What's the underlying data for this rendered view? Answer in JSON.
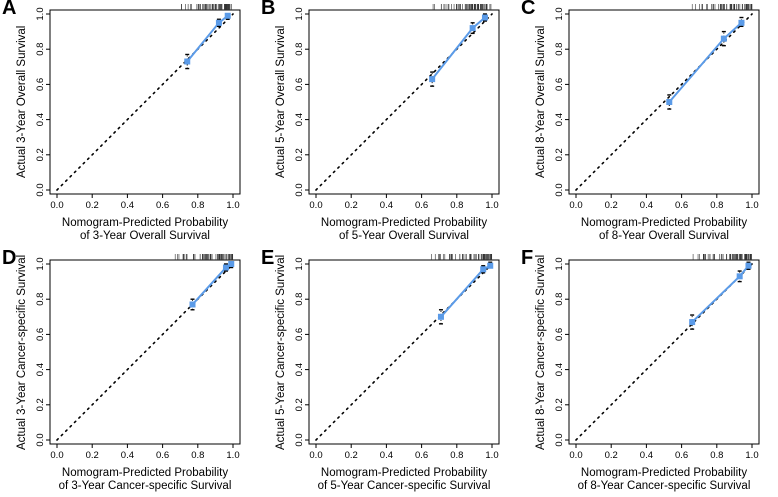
{
  "colors": {
    "calibration_line": "#5b9be8",
    "points": "#000000",
    "ideal_line": "#000000"
  },
  "chart_data": [
    {
      "label": "A",
      "type": "scatter",
      "xlabel": [
        "Nomogram-Predicted Probability",
        "of 3-Year Overall Survival"
      ],
      "ylabel": "Actual 3-Year Overall Survival",
      "xlim": [
        0,
        1
      ],
      "ylim": [
        0,
        1
      ],
      "xticks": [
        "0.0",
        "0.2",
        "0.4",
        "0.6",
        "0.8",
        "1.0"
      ],
      "yticks": [
        "0.0",
        "0.2",
        "0.4",
        "0.6",
        "0.8",
        "1.0"
      ],
      "ideal_line": [
        [
          0,
          0
        ],
        [
          1,
          1
        ]
      ],
      "points": [
        {
          "x": 0.74,
          "y": 0.73,
          "lo": 0.69,
          "hi": 0.77
        },
        {
          "x": 0.92,
          "y": 0.95,
          "lo": 0.93,
          "hi": 0.97
        },
        {
          "x": 0.97,
          "y": 0.99,
          "lo": 0.97,
          "hi": 1.0
        }
      ]
    },
    {
      "label": "B",
      "type": "scatter",
      "xlabel": [
        "Nomogram-Predicted Probability",
        "of 5-Year Overall Survival"
      ],
      "ylabel": "Actual 5-Year Overall Survival",
      "xlim": [
        0,
        1
      ],
      "ylim": [
        0,
        1
      ],
      "xticks": [
        "0.0",
        "0.2",
        "0.4",
        "0.6",
        "0.8",
        "1.0"
      ],
      "yticks": [
        "0.0",
        "0.2",
        "0.4",
        "0.6",
        "0.8",
        "1.0"
      ],
      "ideal_line": [
        [
          0,
          0
        ],
        [
          1,
          1
        ]
      ],
      "points": [
        {
          "x": 0.66,
          "y": 0.63,
          "lo": 0.59,
          "hi": 0.67
        },
        {
          "x": 0.89,
          "y": 0.92,
          "lo": 0.89,
          "hi": 0.95
        },
        {
          "x": 0.96,
          "y": 0.98,
          "lo": 0.96,
          "hi": 1.0
        }
      ]
    },
    {
      "label": "C",
      "type": "scatter",
      "xlabel": [
        "Nomogram-Predicted Probability",
        "of 8-Year Overall Survival"
      ],
      "ylabel": "Actual 8-Year Overall Survival",
      "xlim": [
        0,
        1
      ],
      "ylim": [
        0,
        1
      ],
      "xticks": [
        "0.0",
        "0.2",
        "0.4",
        "0.6",
        "0.8",
        "1.0"
      ],
      "yticks": [
        "0.0",
        "0.2",
        "0.4",
        "0.6",
        "0.8",
        "1.0"
      ],
      "ideal_line": [
        [
          0,
          0
        ],
        [
          1,
          1
        ]
      ],
      "points": [
        {
          "x": 0.53,
          "y": 0.5,
          "lo": 0.46,
          "hi": 0.54
        },
        {
          "x": 0.84,
          "y": 0.86,
          "lo": 0.82,
          "hi": 0.9
        },
        {
          "x": 0.94,
          "y": 0.95,
          "lo": 0.93,
          "hi": 0.98
        }
      ]
    },
    {
      "label": "D",
      "type": "scatter",
      "xlabel": [
        "Nomogram-Predicted Probability",
        "of 3-Year Cancer-specific Survival"
      ],
      "ylabel": "Actual 3-Year Cancer-specific Survival",
      "xlim": [
        0,
        1
      ],
      "ylim": [
        0,
        1
      ],
      "xticks": [
        "0.0",
        "0.2",
        "0.4",
        "0.6",
        "0.8",
        "1.0"
      ],
      "yticks": [
        "0.0",
        "0.2",
        "0.4",
        "0.6",
        "0.8",
        "1.0"
      ],
      "ideal_line": [
        [
          0,
          0
        ],
        [
          1,
          1
        ]
      ],
      "points": [
        {
          "x": 0.77,
          "y": 0.77,
          "lo": 0.74,
          "hi": 0.8
        },
        {
          "x": 0.96,
          "y": 0.98,
          "lo": 0.96,
          "hi": 1.0
        },
        {
          "x": 0.99,
          "y": 1.0,
          "lo": 0.98,
          "hi": 1.01
        }
      ]
    },
    {
      "label": "E",
      "type": "scatter",
      "xlabel": [
        "Nomogram-Predicted Probability",
        "of 5-Year Cancer-specific Survival"
      ],
      "ylabel": "Actual 5-Year Cancer-specific Survival",
      "xlim": [
        0,
        1
      ],
      "ylim": [
        0,
        1
      ],
      "xticks": [
        "0.0",
        "0.2",
        "0.4",
        "0.6",
        "0.8",
        "1.0"
      ],
      "yticks": [
        "0.0",
        "0.2",
        "0.4",
        "0.6",
        "0.8",
        "1.0"
      ],
      "ideal_line": [
        [
          0,
          0
        ],
        [
          1,
          1
        ]
      ],
      "points": [
        {
          "x": 0.71,
          "y": 0.7,
          "lo": 0.66,
          "hi": 0.74
        },
        {
          "x": 0.95,
          "y": 0.97,
          "lo": 0.95,
          "hi": 0.99
        },
        {
          "x": 0.99,
          "y": 0.99,
          "lo": 0.98,
          "hi": 1.01
        }
      ]
    },
    {
      "label": "F",
      "type": "scatter",
      "xlabel": [
        "Nomogram-Predicted Probability",
        "of 8-Year Cancer-specific Survival"
      ],
      "ylabel": "Actual 8-Year Cancer-specific Survival",
      "xlim": [
        0,
        1
      ],
      "ylim": [
        0,
        1
      ],
      "xticks": [
        "0.0",
        "0.2",
        "0.4",
        "0.6",
        "0.8",
        "1.0"
      ],
      "yticks": [
        "0.0",
        "0.2",
        "0.4",
        "0.6",
        "0.8",
        "1.0"
      ],
      "ideal_line": [
        [
          0,
          0
        ],
        [
          1,
          1
        ]
      ],
      "points": [
        {
          "x": 0.66,
          "y": 0.67,
          "lo": 0.63,
          "hi": 0.71
        },
        {
          "x": 0.93,
          "y": 0.93,
          "lo": 0.9,
          "hi": 0.96
        },
        {
          "x": 0.98,
          "y": 0.99,
          "lo": 0.97,
          "hi": 1.01
        }
      ]
    }
  ]
}
